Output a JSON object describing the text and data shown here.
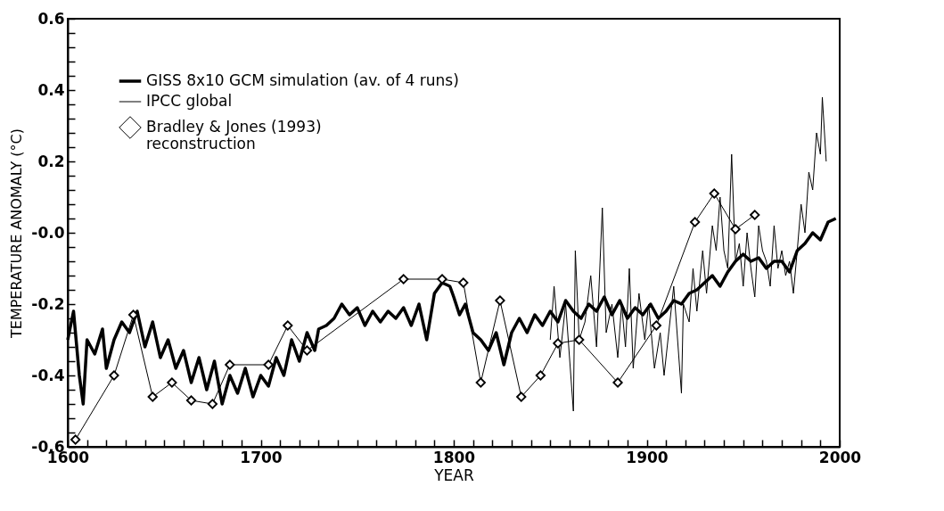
{
  "chart_data": {
    "type": "line",
    "xlabel": "YEAR",
    "ylabel": "TEMPERATURE ANOMALY (°C)",
    "xlim": [
      1600,
      2000
    ],
    "ylim": [
      -0.6,
      0.6
    ],
    "xticks": [
      1600,
      {
        "value": 1610,
        "label": null
      },
      {
        "value": 1620,
        "label": null
      },
      {
        "value": 1630,
        "label": null
      },
      {
        "value": 1640,
        "label": null
      },
      {
        "value": 1650,
        "label": null
      },
      {
        "value": 1660,
        "label": null
      },
      {
        "value": 1670,
        "label": null
      },
      {
        "value": 1680,
        "label": null
      },
      {
        "value": 1690,
        "label": null
      },
      1700,
      {
        "value": 1710,
        "label": null
      },
      {
        "value": 1720,
        "label": null
      },
      {
        "value": 1730,
        "label": null
      },
      {
        "value": 1740,
        "label": null
      },
      {
        "value": 1750,
        "label": null
      },
      {
        "value": 1760,
        "label": null
      },
      {
        "value": 1770,
        "label": null
      },
      {
        "value": 1780,
        "label": null
      },
      {
        "value": 1790,
        "label": null
      },
      1800,
      {
        "value": 1810,
        "label": null
      },
      {
        "value": 1820,
        "label": null
      },
      {
        "value": 1830,
        "label": null
      },
      {
        "value": 1840,
        "label": null
      },
      {
        "value": 1850,
        "label": null
      },
      {
        "value": 1860,
        "label": null
      },
      {
        "value": 1870,
        "label": null
      },
      {
        "value": 1880,
        "label": null
      },
      {
        "value": 1890,
        "label": null
      },
      1900,
      {
        "value": 1910,
        "label": null
      },
      {
        "value": 1920,
        "label": null
      },
      {
        "value": 1930,
        "label": null
      },
      {
        "value": 1940,
        "label": null
      },
      {
        "value": 1950,
        "label": null
      },
      {
        "value": 1960,
        "label": null
      },
      {
        "value": 1970,
        "label": null
      },
      {
        "value": 1980,
        "label": null
      },
      {
        "value": 1990,
        "label": null
      },
      2000
    ],
    "yticks": [
      -0.6,
      {
        "value": -0.56,
        "label": null
      },
      {
        "value": -0.52,
        "label": null
      },
      {
        "value": -0.48,
        "label": null
      },
      {
        "value": -0.44,
        "label": null
      },
      -0.4,
      {
        "value": -0.36,
        "label": null
      },
      {
        "value": -0.32,
        "label": null
      },
      {
        "value": -0.28,
        "label": null
      },
      {
        "value": -0.24,
        "label": null
      },
      -0.2,
      {
        "value": -0.16,
        "label": null
      },
      {
        "value": -0.12,
        "label": null
      },
      {
        "value": -0.08,
        "label": null
      },
      {
        "value": -0.04,
        "label": null
      },
      {
        "value": 0,
        "label": "-0.0"
      },
      {
        "value": 0.04,
        "label": null
      },
      {
        "value": 0.08,
        "label": null
      },
      {
        "value": 0.12,
        "label": null
      },
      {
        "value": 0.16,
        "label": null
      },
      0.2,
      {
        "value": 0.24,
        "label": null
      },
      {
        "value": 0.28,
        "label": null
      },
      {
        "value": 0.32,
        "label": null
      },
      {
        "value": 0.36,
        "label": null
      },
      0.4,
      {
        "value": 0.44,
        "label": null
      },
      {
        "value": 0.48,
        "label": null
      },
      {
        "value": 0.52,
        "label": null
      },
      {
        "value": 0.56,
        "label": null
      },
      0.6
    ],
    "grid": false,
    "legend": "top left",
    "series": [
      {
        "name": "GISS 8x10 GCM simulation (av. of 4 runs)",
        "color": "#000000",
        "marker": "none",
        "x": [
          1600,
          1603,
          1606,
          1608,
          1610,
          1614,
          1618,
          1620,
          1624,
          1628,
          1632,
          1636,
          1640,
          1644,
          1648,
          1652,
          1656,
          1660,
          1664,
          1668,
          1672,
          1676,
          1680,
          1684,
          1688,
          1692,
          1696,
          1700,
          1704,
          1708,
          1712,
          1716,
          1720,
          1724,
          1728,
          1730,
          1734,
          1738,
          1742,
          1746,
          1750,
          1754,
          1758,
          1762,
          1766,
          1770,
          1774,
          1778,
          1782,
          1786,
          1790,
          1794,
          1798,
          1800,
          1803,
          1806,
          1810,
          1814,
          1818,
          1822,
          1826,
          1830,
          1834,
          1838,
          1842,
          1846,
          1850,
          1854,
          1858,
          1862,
          1866,
          1870,
          1874,
          1878,
          1882,
          1886,
          1890,
          1894,
          1898,
          1902,
          1906,
          1910,
          1914,
          1918,
          1922,
          1926,
          1930,
          1934,
          1938,
          1942,
          1946,
          1950,
          1954,
          1958,
          1962,
          1966,
          1970,
          1974,
          1978,
          1982,
          1986,
          1990,
          1994,
          1998
        ],
        "values": [
          -0.3,
          -0.22,
          -0.4,
          -0.48,
          -0.3,
          -0.34,
          -0.27,
          -0.38,
          -0.3,
          -0.25,
          -0.28,
          -0.22,
          -0.32,
          -0.25,
          -0.35,
          -0.3,
          -0.38,
          -0.33,
          -0.42,
          -0.35,
          -0.44,
          -0.36,
          -0.48,
          -0.4,
          -0.45,
          -0.38,
          -0.46,
          -0.4,
          -0.43,
          -0.35,
          -0.4,
          -0.3,
          -0.36,
          -0.28,
          -0.33,
          -0.27,
          -0.26,
          -0.24,
          -0.2,
          -0.23,
          -0.21,
          -0.26,
          -0.22,
          -0.25,
          -0.22,
          -0.24,
          -0.21,
          -0.26,
          -0.2,
          -0.3,
          -0.17,
          -0.14,
          -0.15,
          -0.18,
          -0.23,
          -0.2,
          -0.28,
          -0.3,
          -0.33,
          -0.28,
          -0.37,
          -0.28,
          -0.24,
          -0.28,
          -0.23,
          -0.26,
          -0.22,
          -0.25,
          -0.19,
          -0.22,
          -0.24,
          -0.2,
          -0.22,
          -0.18,
          -0.23,
          -0.19,
          -0.24,
          -0.21,
          -0.23,
          -0.2,
          -0.24,
          -0.22,
          -0.19,
          -0.2,
          -0.17,
          -0.16,
          -0.14,
          -0.12,
          -0.15,
          -0.11,
          -0.08,
          -0.06,
          -0.08,
          -0.07,
          -0.1,
          -0.08,
          -0.08,
          -0.11,
          -0.05,
          -0.03,
          0.0,
          -0.02,
          0.03,
          0.04
        ]
      },
      {
        "name": "IPCC global",
        "color": "#000000",
        "marker": "none",
        "x": [
          1850,
          1852,
          1855,
          1858,
          1862,
          1863,
          1865,
          1868,
          1871,
          1874,
          1877,
          1879,
          1882,
          1885,
          1887,
          1889,
          1891,
          1893,
          1896,
          1899,
          1901,
          1904,
          1907,
          1909,
          1911,
          1914,
          1918,
          1919,
          1922,
          1924,
          1926,
          1929,
          1931,
          1934,
          1936,
          1938,
          1940,
          1942,
          1944,
          1946,
          1948,
          1950,
          1952,
          1954,
          1956,
          1958,
          1960,
          1962,
          1964,
          1966,
          1968,
          1970,
          1972,
          1974,
          1976,
          1978,
          1980,
          1982,
          1984,
          1986,
          1988,
          1990,
          1991,
          1993
        ],
        "values": [
          -0.3,
          -0.15,
          -0.35,
          -0.2,
          -0.5,
          -0.05,
          -0.3,
          -0.25,
          -0.12,
          -0.32,
          0.07,
          -0.28,
          -0.2,
          -0.35,
          -0.2,
          -0.32,
          -0.1,
          -0.38,
          -0.17,
          -0.3,
          -0.2,
          -0.38,
          -0.28,
          -0.4,
          -0.3,
          -0.15,
          -0.45,
          -0.2,
          -0.25,
          -0.1,
          -0.22,
          -0.05,
          -0.17,
          0.02,
          -0.05,
          0.1,
          -0.05,
          -0.1,
          0.22,
          -0.08,
          -0.03,
          -0.15,
          0.0,
          -0.1,
          -0.18,
          0.02,
          -0.05,
          -0.08,
          -0.15,
          0.02,
          -0.1,
          -0.05,
          -0.12,
          -0.08,
          -0.17,
          -0.05,
          0.08,
          0.0,
          0.17,
          0.12,
          0.28,
          0.22,
          0.38,
          0.2
        ]
      },
      {
        "name": "Bradley & Jones (1993)\nreconstruction",
        "color": "#000000",
        "marker": "diamond",
        "x": [
          1604,
          1624,
          1634,
          1644,
          1654,
          1664,
          1675,
          1684,
          1704,
          1714,
          1724,
          1774,
          1794,
          1805,
          1814,
          1824,
          1835,
          1845,
          1854,
          1865,
          1885,
          1905,
          1925,
          1935,
          1946,
          1956
        ],
        "values": [
          -0.58,
          -0.4,
          -0.23,
          -0.46,
          -0.42,
          -0.47,
          -0.48,
          -0.37,
          -0.37,
          -0.26,
          -0.33,
          -0.13,
          -0.13,
          -0.14,
          -0.42,
          -0.19,
          -0.46,
          -0.4,
          -0.31,
          -0.3,
          -0.42,
          -0.26,
          0.03,
          0.11,
          0.01,
          0.05
        ]
      }
    ]
  }
}
